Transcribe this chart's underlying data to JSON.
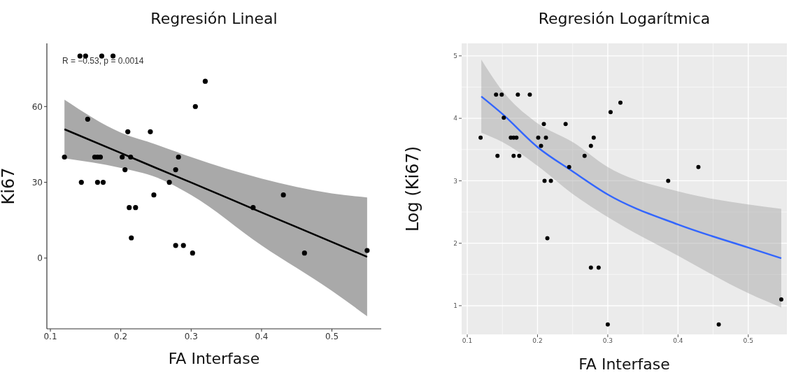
{
  "chart_data": [
    {
      "type": "scatter",
      "title": "Regresión Lineal",
      "xlabel": "FA Interfase",
      "ylabel": "Ki67",
      "annotations": [
        "R = −0.53, p = 0.0014"
      ],
      "xlim": [
        0.095,
        0.57
      ],
      "ylim": [
        -28,
        85
      ],
      "xticks": [
        0.1,
        0.2,
        0.3,
        0.4,
        0.5
      ],
      "yticks": [
        0,
        30,
        60
      ],
      "grid": false,
      "series": [
        {
          "marker": "circle",
          "color": "#000000",
          "x": [
            0.12,
            0.142,
            0.15,
            0.173,
            0.189,
            0.32,
            0.306,
            0.153,
            0.21,
            0.242,
            0.163,
            0.167,
            0.171,
            0.202,
            0.214,
            0.282,
            0.206,
            0.278,
            0.144,
            0.167,
            0.175,
            0.269,
            0.247,
            0.212,
            0.221,
            0.215,
            0.278,
            0.289,
            0.302,
            0.388,
            0.431,
            0.461,
            0.55
          ],
          "values": [
            40,
            80,
            80,
            80,
            80,
            70,
            60,
            55,
            50,
            50,
            40,
            40,
            40,
            40,
            40,
            40,
            35,
            35,
            30,
            30,
            30,
            30,
            25,
            20,
            20,
            8,
            5,
            5,
            2,
            20,
            25,
            2,
            3
          ]
        },
        {
          "type": "line",
          "color": "#000000",
          "x": [
            0.12,
            0.2,
            0.25,
            0.3,
            0.4,
            0.5,
            0.55
          ],
          "values": [
            51,
            41.6,
            35.7,
            29.9,
            18.1,
            6.4,
            0.5
          ],
          "lower": [
            39.5,
            35.7,
            32,
            25,
            5,
            -13,
            -23
          ],
          "upper": [
            62.7,
            49.7,
            45,
            40,
            31.5,
            25.6,
            24
          ]
        }
      ]
    },
    {
      "type": "scatter",
      "title": "Regresión Logarítmica",
      "xlabel": "FA Interfase",
      "ylabel": "Log (Ki67)",
      "xlim": [
        0.092,
        0.555
      ],
      "ylim": [
        0.54,
        5.2
      ],
      "xticks": [
        0.1,
        0.2,
        0.3,
        0.4,
        0.5
      ],
      "yticks": [
        1,
        2,
        3,
        4,
        5
      ],
      "grid": true,
      "series": [
        {
          "marker": "circle",
          "color": "#000000",
          "x": [
            0.119,
            0.141,
            0.149,
            0.172,
            0.189,
            0.152,
            0.143,
            0.162,
            0.166,
            0.17,
            0.166,
            0.174,
            0.201,
            0.205,
            0.209,
            0.212,
            0.24,
            0.245,
            0.21,
            0.219,
            0.214,
            0.267,
            0.276,
            0.28,
            0.276,
            0.287,
            0.3,
            0.304,
            0.318,
            0.386,
            0.429,
            0.458,
            0.547
          ],
          "values": [
            3.69,
            4.38,
            4.38,
            4.38,
            4.38,
            4.01,
            3.4,
            3.69,
            3.69,
            3.69,
            3.4,
            3.4,
            3.69,
            3.56,
            3.91,
            3.69,
            3.91,
            3.22,
            3.0,
            3.0,
            2.08,
            3.4,
            3.56,
            3.69,
            1.61,
            1.61,
            0.7,
            4.1,
            4.25,
            3.0,
            3.22,
            0.7,
            1.1
          ]
        },
        {
          "type": "line",
          "color": "#3366ff",
          "x": [
            0.12,
            0.15,
            0.2,
            0.25,
            0.3,
            0.4,
            0.5,
            0.547
          ],
          "values": [
            4.35,
            4.07,
            3.54,
            3.15,
            2.78,
            2.3,
            1.93,
            1.76
          ],
          "lower": [
            3.77,
            3.62,
            3.24,
            2.79,
            2.42,
            1.8,
            1.2,
            0.97
          ],
          "upper": [
            4.94,
            4.44,
            3.92,
            3.62,
            3.22,
            2.83,
            2.62,
            2.55
          ]
        }
      ]
    }
  ]
}
